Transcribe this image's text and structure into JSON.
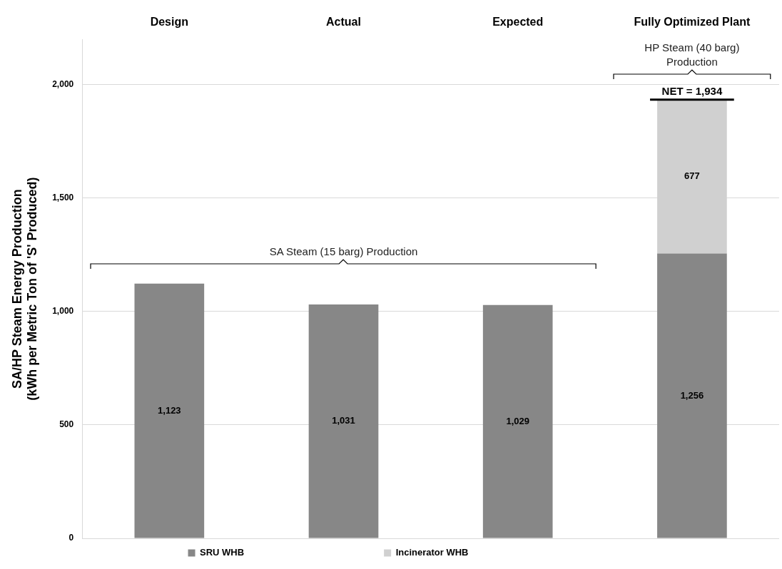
{
  "chart_data": {
    "type": "bar",
    "stacked": true,
    "categories": [
      "Design",
      "Actual",
      "Expected",
      "Fully Optimized Plant"
    ],
    "series": [
      {
        "name": "SRU WHB",
        "color": "#878787",
        "values": [
          1123,
          1031,
          1029,
          1256
        ],
        "value_labels": [
          "1,123",
          "1,031",
          "1,029",
          "1,256"
        ]
      },
      {
        "name": "Incinerator WHB",
        "color": "#d0d0d0",
        "values": [
          null,
          null,
          null,
          677
        ],
        "value_labels": [
          null,
          null,
          null,
          "677"
        ]
      }
    ],
    "ylabel": "SA/HP Steam Energy Production\n(kWh per Metric Ton of 'S' Produced)",
    "ylim": [
      0,
      2200
    ],
    "yticks": [
      0,
      500,
      {
        "value": 1000,
        "label": "1,000"
      },
      {
        "value": 1500,
        "label": "1,500"
      },
      {
        "value": 2000,
        "label": "2,000"
      }
    ],
    "grid": "y",
    "legend": "bottom",
    "annotations": [
      "SA Steam (15 barg) Production",
      "HP Steam (40 barg) Production",
      {
        "text": "NET = 1,934",
        "x": "Fully Optimized Plant",
        "y": 1934
      }
    ]
  }
}
